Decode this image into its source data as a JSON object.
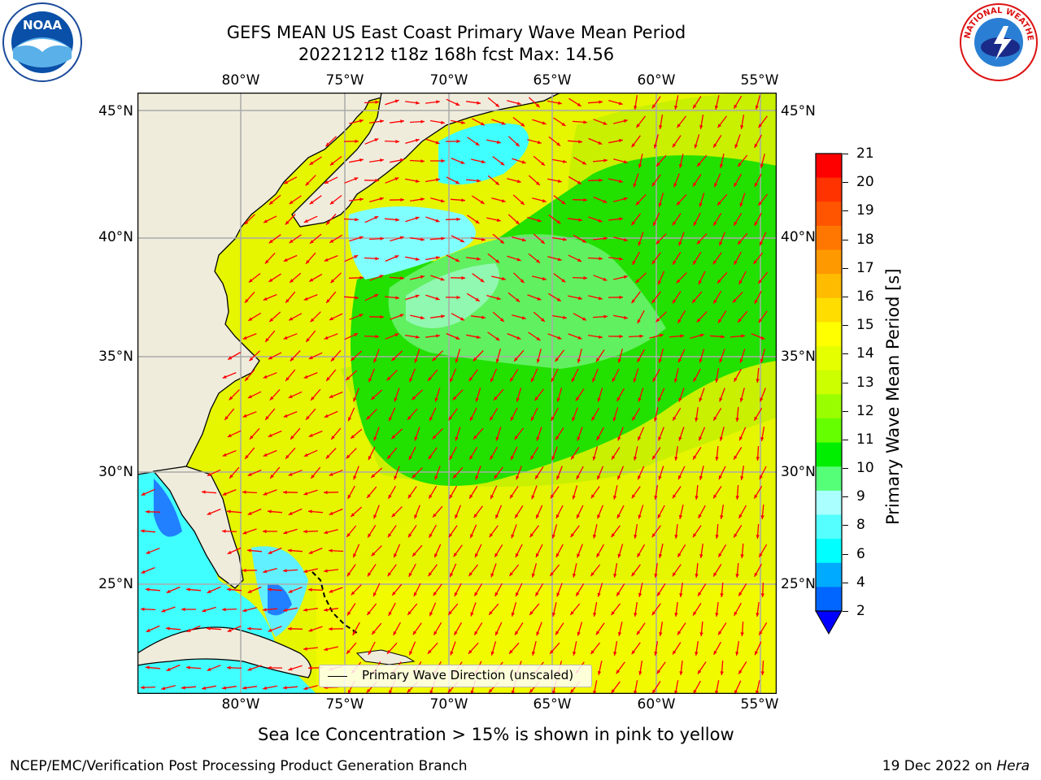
{
  "header": {
    "title_line1": "GEFS MEAN US East Coast Primary Wave Mean Period",
    "title_line2": "20221212 t18z 168h fcst   Max: 14.56"
  },
  "logos": {
    "left_name": "NOAA",
    "right_name": "NATIONAL WEATHER SERVICE"
  },
  "map": {
    "lon_labels": [
      "80°W",
      "75°W",
      "70°W",
      "65°W",
      "60°W",
      "55°W"
    ],
    "lat_labels": [
      "45°N",
      "40°N",
      "35°N",
      "30°N",
      "25°N"
    ],
    "legend_label": "Primary Wave Direction (unscaled)",
    "arrow_color": "#ff0000",
    "land_color": "#efecdc"
  },
  "colorbar": {
    "title": "Primary Wave Mean Period [s]",
    "ticks": [
      "21",
      "20",
      "19",
      "18",
      "17",
      "16",
      "15",
      "14",
      "13",
      "12",
      "11",
      "10",
      "9",
      "8",
      "6",
      "4",
      "2"
    ],
    "colors": [
      "#ff0000",
      "#ff3300",
      "#ff5500",
      "#ff7700",
      "#ff9900",
      "#ffbb00",
      "#ffdd00",
      "#ffff00",
      "#e6ff00",
      "#ccff00",
      "#99ff00",
      "#66ff00",
      "#00ee00",
      "#55ff77",
      "#aaffff",
      "#55ffff",
      "#00ffff",
      "#00aaff",
      "#0066ff"
    ],
    "extend_color": "#0000ff"
  },
  "notes": {
    "sea_ice": "Sea Ice Concentration > 15% is shown in pink to yellow",
    "producer": "NCEP/EMC/Verification Post Processing Product Generation Branch",
    "date": "19 Dec 2022 on",
    "machine": "Hera"
  }
}
